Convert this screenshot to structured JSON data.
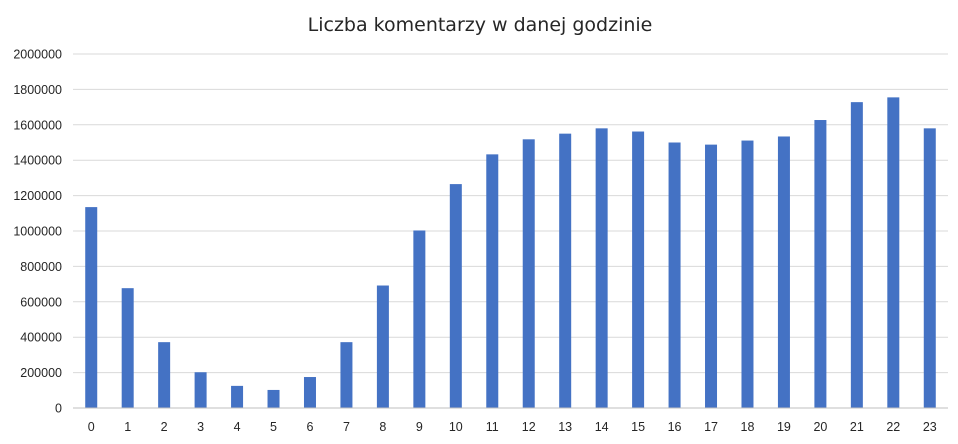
{
  "chart_data": {
    "type": "bar",
    "title": "Liczba komentarzy w danej godzinie",
    "xlabel": "",
    "ylabel": "",
    "categories": [
      "0",
      "1",
      "2",
      "3",
      "4",
      "5",
      "6",
      "7",
      "8",
      "9",
      "10",
      "11",
      "12",
      "13",
      "14",
      "15",
      "16",
      "17",
      "18",
      "19",
      "20",
      "21",
      "22",
      "23"
    ],
    "values": [
      1135000,
      677000,
      372000,
      202000,
      125000,
      102000,
      175000,
      372000,
      692000,
      1003000,
      1265000,
      1433000,
      1518000,
      1550000,
      1580000,
      1562000,
      1500000,
      1488000,
      1511000,
      1534000,
      1627000,
      1728000,
      1755000,
      1580000
    ],
    "ylim": [
      0,
      2000000
    ],
    "yticks": [
      "0",
      "200000",
      "400000",
      "600000",
      "800000",
      "1000000",
      "1200000",
      "1400000",
      "1600000",
      "1800000",
      "2000000"
    ],
    "grid": true,
    "legend": "none",
    "bar_color": "#4472c4"
  }
}
